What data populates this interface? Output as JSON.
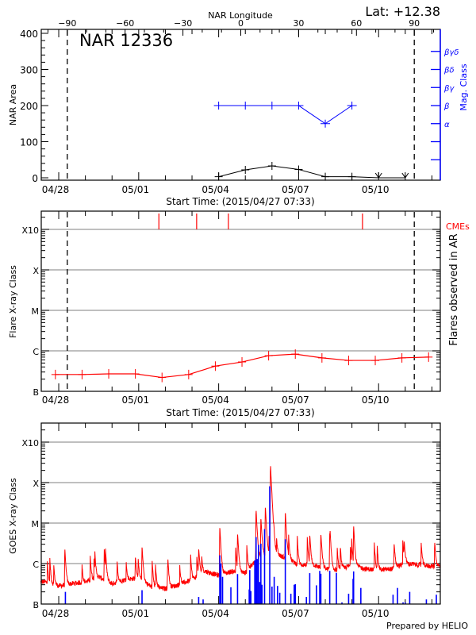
{
  "colors": {
    "area": "#000000",
    "mag_class": "#0000ff",
    "flares": "#ff0000",
    "cmes": "#ff0000",
    "goes": "#ff0000",
    "ar_flares": "#0000ff",
    "grid": "#999999"
  },
  "footer": "Prepared by HELIO",
  "chart_data": [
    {
      "type": "line",
      "title": "NAR 12336",
      "annotation": "Lat: +12.38",
      "top_axis": {
        "label": "NAR Longitude",
        "ticks": [
          -90,
          -60,
          -30,
          0,
          30,
          60,
          90
        ],
        "limb_lines": [
          -90,
          90
        ]
      },
      "xlabel": "Start Time: (2015/04/27 07:33)",
      "x_start": "2015-04-27T07:33",
      "x_tick_labels": [
        "04/28",
        "05/01",
        "05/04",
        "05/07",
        "05/10"
      ],
      "ylabel": "NAR Area",
      "ylim": [
        0,
        400
      ],
      "y_ticks": [
        0,
        100,
        200,
        300,
        400
      ],
      "y2label": "Mag. Class",
      "y2_tick_labels": [
        "α",
        "β",
        "βγ",
        "βδ",
        "βγδ"
      ],
      "series": [
        {
          "kind": "area",
          "x": [
            "2015-05-04T00:00",
            "2015-05-05T00:00",
            "2015-05-06T00:00",
            "2015-05-07T00:00",
            "2015-05-08T00:00",
            "2015-05-09T00:00",
            "2015-05-10T00:00",
            "2015-05-11T00:00"
          ],
          "values": [
            3,
            22,
            33,
            23,
            3,
            3,
            0,
            0
          ]
        },
        {
          "kind": "mag_class",
          "x": [
            "2015-05-04T00:00",
            "2015-05-05T00:00",
            "2015-05-06T00:00",
            "2015-05-07T00:00",
            "2015-05-08T00:00",
            "2015-05-09T00:00"
          ],
          "values": [
            "β",
            "β",
            "β",
            "β",
            "α",
            "β"
          ]
        }
      ]
    },
    {
      "type": "line",
      "xlabel": "Start Time: (2015/04/27 07:33)",
      "x_tick_labels": [
        "04/28",
        "05/01",
        "05/04",
        "05/07",
        "05/10"
      ],
      "ylabel": "Flare X-ray Class",
      "y2label": "Flares observed in AR",
      "y_tick_labels": [
        "B",
        "C",
        "M",
        "X",
        "X10"
      ],
      "y_scale": "log",
      "grid": true,
      "cme_label": "CMEs",
      "cmes": [
        "2015-05-01T18:10",
        "2015-05-03T04:10",
        "2015-05-04T08:45",
        "2015-05-09T09:30"
      ],
      "series": [
        {
          "kind": "flare_class",
          "x": [
            "2015-04-27T21:00",
            "2015-04-28T21:00",
            "2015-04-29T21:00",
            "2015-04-30T21:00",
            "2015-05-01T21:00",
            "2015-05-02T21:00",
            "2015-05-03T21:00",
            "2015-05-04T21:00",
            "2015-05-05T21:00",
            "2015-05-06T21:00",
            "2015-05-07T21:00",
            "2015-05-08T21:00",
            "2015-05-09T21:00",
            "2015-05-10T21:00",
            "2015-05-11T21:00"
          ],
          "values": [
            "B2.6",
            "B2.6",
            "B2.7",
            "B2.7",
            "B2.2",
            "B2.6",
            "B4.2",
            "B5.3",
            "B7.6",
            "B8.3",
            "B6.7",
            "B5.8",
            "B5.8",
            "B6.7",
            "B7.0"
          ]
        }
      ]
    },
    {
      "type": "line",
      "x_tick_labels": [
        "04/28",
        "05/01",
        "05/04",
        "05/07",
        "05/10"
      ],
      "ylabel": "GOES X-ray Class",
      "y_tick_labels": [
        "B",
        "C",
        "M",
        "X",
        "X10"
      ],
      "y_scale": "log",
      "grid": true,
      "goes_baseline": [
        {
          "t": "2015-04-27T12:00",
          "c": "B3.5"
        },
        {
          "t": "2015-04-28T00:00",
          "c": "B2.8"
        },
        {
          "t": "2015-04-28T12:00",
          "c": "B3.2"
        },
        {
          "t": "2015-04-29T00:00",
          "c": "B3.5"
        },
        {
          "t": "2015-04-29T12:00",
          "c": "B4.7"
        },
        {
          "t": "2015-04-30T00:00",
          "c": "B3.2"
        },
        {
          "t": "2015-04-30T12:00",
          "c": "B4.0"
        },
        {
          "t": "2015-05-01T00:00",
          "c": "B4.4"
        },
        {
          "t": "2015-05-01T12:00",
          "c": "B2.6"
        },
        {
          "t": "2015-05-02T00:00",
          "c": "B2.4"
        },
        {
          "t": "2015-05-02T12:00",
          "c": "B3.0"
        },
        {
          "t": "2015-05-03T00:00",
          "c": "B4.0"
        },
        {
          "t": "2015-05-03T12:00",
          "c": "B6.4"
        },
        {
          "t": "2015-05-04T00:00",
          "c": "B5.1"
        },
        {
          "t": "2015-05-04T12:00",
          "c": "B6.4"
        },
        {
          "t": "2015-05-05T00:00",
          "c": "B5.9"
        },
        {
          "t": "2015-05-05T12:00",
          "c": "C1.4"
        },
        {
          "t": "2015-05-06T00:00",
          "c": "C1.8"
        },
        {
          "t": "2015-05-06T12:00",
          "c": "C1.4"
        },
        {
          "t": "2015-05-07T00:00",
          "c": "B9.3"
        },
        {
          "t": "2015-05-07T12:00",
          "c": "B9.3"
        },
        {
          "t": "2015-05-08T00:00",
          "c": "B7.4"
        },
        {
          "t": "2015-05-08T12:00",
          "c": "B6.9"
        },
        {
          "t": "2015-05-09T00:00",
          "c": "B9.3"
        },
        {
          "t": "2015-05-09T12:00",
          "c": "B7.4"
        },
        {
          "t": "2015-05-10T00:00",
          "c": "B6.9"
        },
        {
          "t": "2015-05-10T12:00",
          "c": "B7.4"
        },
        {
          "t": "2015-05-11T00:00",
          "c": "C1.0"
        },
        {
          "t": "2015-05-11T12:00",
          "c": "B9.3"
        },
        {
          "t": "2015-05-12T00:00",
          "c": "B8.6"
        }
      ],
      "goes_peaks": [
        {
          "t": "2015-04-28T05:30",
          "c": "C2.0"
        },
        {
          "t": "2015-04-29T17:00",
          "c": "C1.0"
        },
        {
          "t": "2015-04-30T21:00",
          "c": "C1.1"
        },
        {
          "t": "2015-05-01T03:00",
          "c": "C2.4"
        },
        {
          "t": "2015-05-02T02:00",
          "c": "B7.2"
        },
        {
          "t": "2015-05-03T06:00",
          "c": "C1.9"
        },
        {
          "t": "2015-05-04T01:00",
          "c": "C8.2"
        },
        {
          "t": "2015-05-04T17:00",
          "c": "C5.2"
        },
        {
          "t": "2015-05-05T09:40",
          "c": "M1.9"
        },
        {
          "t": "2015-05-05T14:00",
          "c": "M1.3"
        },
        {
          "t": "2015-05-05T18:00",
          "c": "M2.6"
        },
        {
          "t": "2015-05-05T22:40",
          "c": "X2.8"
        },
        {
          "t": "2015-05-06T12:00",
          "c": "M1.9"
        },
        {
          "t": "2015-05-07T10:00",
          "c": "C4.5"
        },
        {
          "t": "2015-05-07T20:00",
          "c": "C5.1"
        },
        {
          "t": "2015-05-08T04:00",
          "c": "C5.6"
        },
        {
          "t": "2015-05-09T01:30",
          "c": "C7.6"
        },
        {
          "t": "2015-05-10T14:00",
          "c": "C2.5"
        },
        {
          "t": "2015-05-10T23:00",
          "c": "C2.5"
        },
        {
          "t": "2015-05-12T02:30",
          "c": "C2.6"
        }
      ],
      "ar_flares": [
        {
          "t": "2015-04-28T06:00",
          "c": "B2.0"
        },
        {
          "t": "2015-05-01T03:00",
          "c": "B2.2"
        },
        {
          "t": "2015-05-03T06:00",
          "c": "B1.5"
        },
        {
          "t": "2015-05-03T10:00",
          "c": "B1.3"
        },
        {
          "t": "2015-05-04T01:00",
          "c": "C1.6"
        },
        {
          "t": "2015-05-04T02:00",
          "c": "C1.0"
        },
        {
          "t": "2015-05-04T03:30",
          "c": "B4.7"
        },
        {
          "t": "2015-05-04T11:00",
          "c": "B2.6"
        },
        {
          "t": "2015-05-04T17:00",
          "c": "B5.5"
        },
        {
          "t": "2015-05-05T03:30",
          "c": "B2.3"
        },
        {
          "t": "2015-05-05T04:00",
          "c": "B6.9"
        },
        {
          "t": "2015-05-05T05:00",
          "c": "B2.1"
        },
        {
          "t": "2015-05-05T08:30",
          "c": "C1.2"
        },
        {
          "t": "2015-05-05T09:40",
          "c": "C4.5"
        },
        {
          "t": "2015-05-05T10:40",
          "c": "C1.3"
        },
        {
          "t": "2015-05-05T11:50",
          "c": "C2.9"
        },
        {
          "t": "2015-05-05T13:00",
          "c": "B3.5"
        },
        {
          "t": "2015-05-05T14:00",
          "c": "C3.1"
        },
        {
          "t": "2015-05-05T15:00",
          "c": "B3.0"
        },
        {
          "t": "2015-05-05T17:20",
          "c": "C7.1"
        },
        {
          "t": "2015-05-05T22:00",
          "c": "M8.1"
        },
        {
          "t": "2015-05-06T00:00",
          "c": "B2.7"
        },
        {
          "t": "2015-05-06T02:00",
          "c": "B4.7"
        },
        {
          "t": "2015-05-06T05:00",
          "c": "B2.8"
        },
        {
          "t": "2015-05-06T07:00",
          "c": "B1.9"
        },
        {
          "t": "2015-05-06T12:00",
          "c": "C4.0"
        },
        {
          "t": "2015-05-06T17:00",
          "c": "B1.8"
        },
        {
          "t": "2015-05-06T20:00",
          "c": "B3.0"
        },
        {
          "t": "2015-05-06T21:00",
          "c": "B3.1"
        },
        {
          "t": "2015-05-07T07:00",
          "c": "B1.5"
        },
        {
          "t": "2015-05-07T10:00",
          "c": "B5.8"
        },
        {
          "t": "2015-05-07T16:00",
          "c": "B2.9"
        },
        {
          "t": "2015-05-07T19:00",
          "c": "B6.6"
        },
        {
          "t": "2015-05-07T20:00",
          "c": "B5.6"
        },
        {
          "t": "2015-05-08T04:00",
          "c": "B6.6"
        },
        {
          "t": "2015-05-08T10:00",
          "c": "B5.9"
        },
        {
          "t": "2015-05-08T15:00",
          "c": "B1.1"
        },
        {
          "t": "2015-05-08T21:00",
          "c": "B1.8"
        },
        {
          "t": "2015-05-09T01:00",
          "c": "B4.2"
        },
        {
          "t": "2015-05-09T01:30",
          "c": "B6.4"
        },
        {
          "t": "2015-05-09T08:00",
          "c": "B2.5"
        },
        {
          "t": "2015-05-10T13:00",
          "c": "B1.7"
        },
        {
          "t": "2015-05-10T17:00",
          "c": "B2.5"
        },
        {
          "t": "2015-05-10T22:00",
          "c": "B1.1"
        },
        {
          "t": "2015-05-11T00:00",
          "c": "B1.1"
        },
        {
          "t": "2015-05-11T04:00",
          "c": "B2.0"
        },
        {
          "t": "2015-05-11T19:00",
          "c": "B1.3"
        },
        {
          "t": "2015-05-12T04:00",
          "c": "B1.7"
        }
      ]
    }
  ]
}
